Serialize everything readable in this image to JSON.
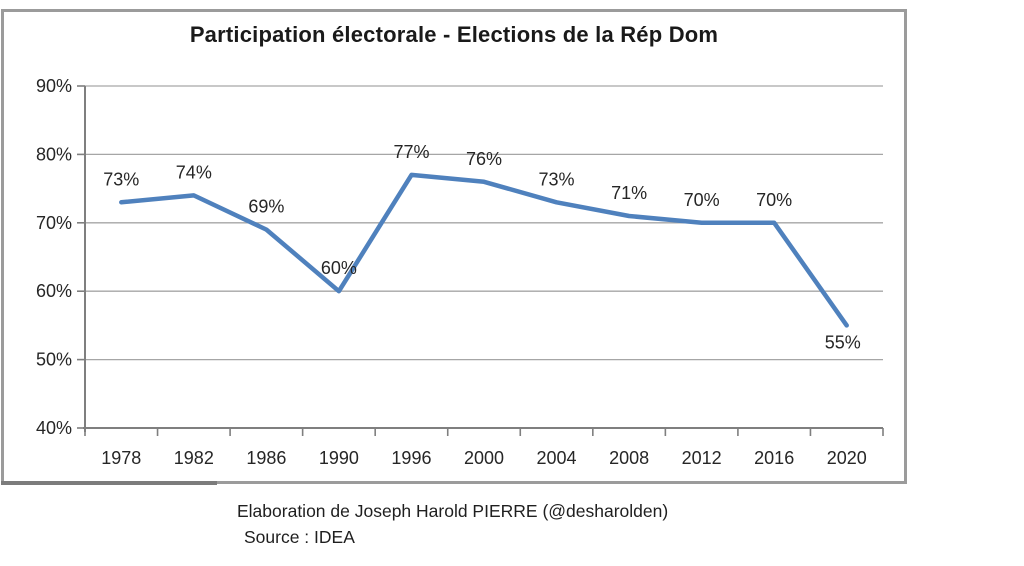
{
  "chart_data": {
    "type": "line",
    "title": "Participation électorale - Elections de la Rép Dom",
    "categories": [
      "1978",
      "1982",
      "1986",
      "1990",
      "1996",
      "2000",
      "2004",
      "2008",
      "2012",
      "2016",
      "2020"
    ],
    "values": [
      73,
      74,
      69,
      60,
      77,
      76,
      73,
      71,
      70,
      70,
      55
    ],
    "point_labels": [
      "73%",
      "74%",
      "69%",
      "60%",
      "77%",
      "76%",
      "73%",
      "71%",
      "70%",
      "70%",
      "55%"
    ],
    "xlabel": "",
    "ylabel": "",
    "ylim": [
      40,
      90
    ],
    "y_tick_labels": [
      "90%",
      "80%",
      "70%",
      "60%",
      "50%",
      "40%"
    ],
    "y_tick_values": [
      90,
      80,
      70,
      60,
      50,
      40
    ],
    "grid": "horizontal",
    "legend": "none",
    "line_color": "#4f81bd",
    "grid_color": "#a6a6a6",
    "axis_color": "#7f7f7f",
    "text_color": "#262626"
  },
  "footer": {
    "attribution": "Elaboration de Joseph Harold PIERRE (@desharolden)",
    "source": "Source : IDEA"
  }
}
